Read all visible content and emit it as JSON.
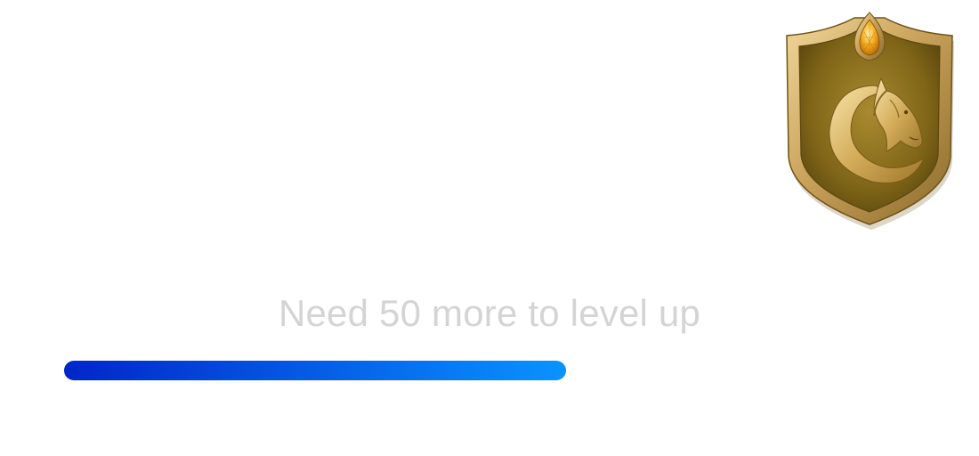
{
  "level_status": {
    "message": "Need 50 more to level up",
    "progress_fraction": 0.59
  },
  "badge": {
    "icon": "horse-head-shield-icon",
    "colors": {
      "shield_gold": "#8b6f1c",
      "rim_gold": "#d2b06a",
      "gem": "#f0a820"
    }
  },
  "progress_gradient": {
    "start": "#0026c8",
    "end": "#0a93ff"
  }
}
